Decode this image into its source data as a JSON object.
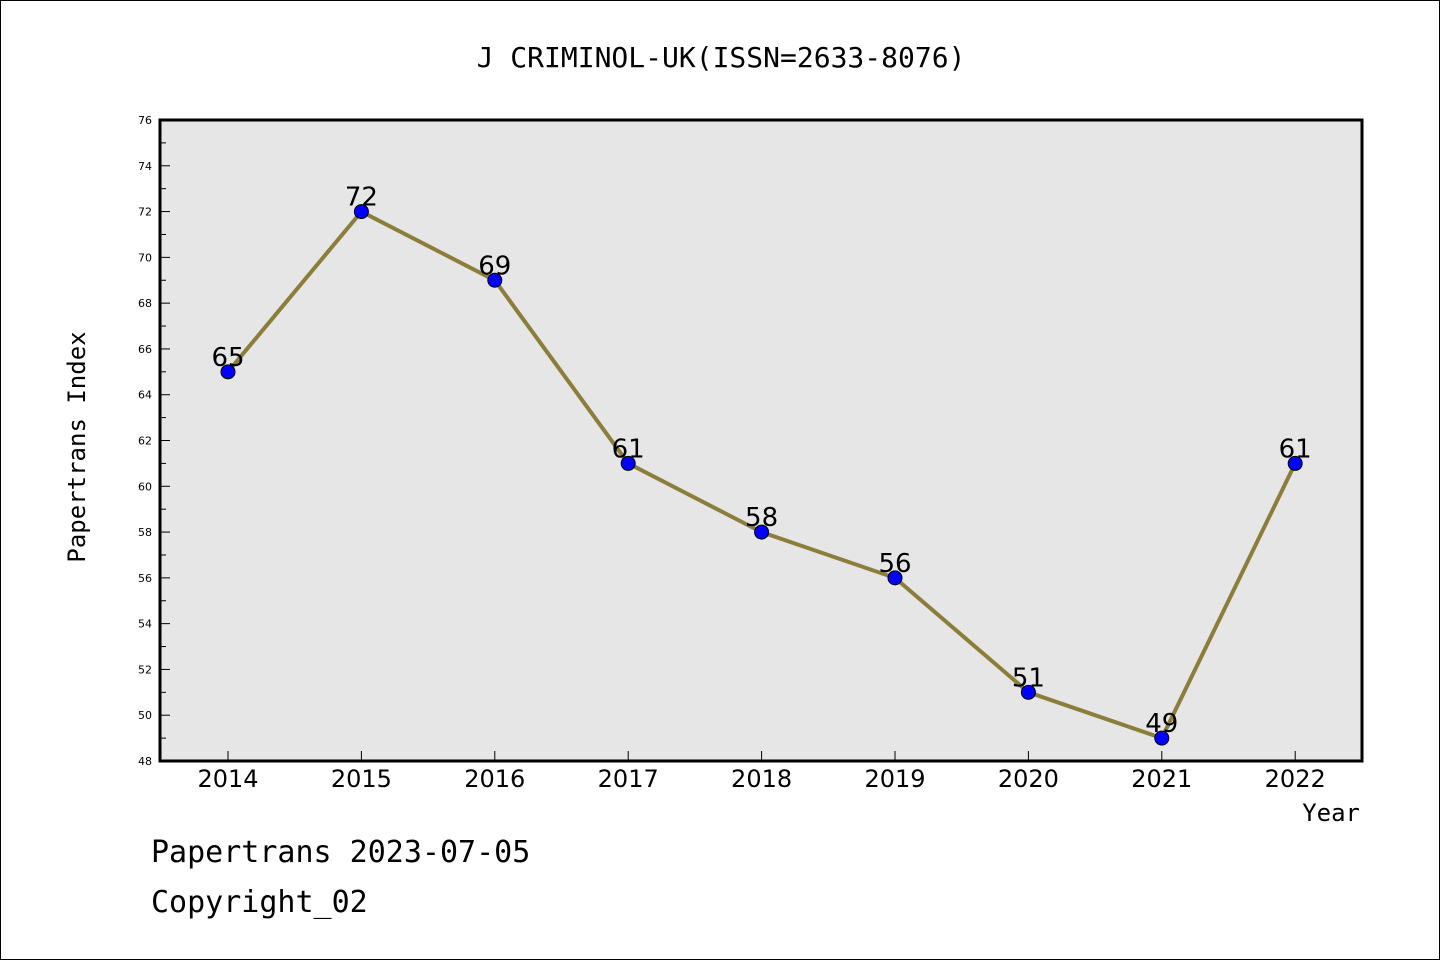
{
  "chart_data": {
    "type": "line",
    "title": "J CRIMINOL-UK(ISSN=2633-8076)",
    "xlabel": "Year",
    "ylabel": "Papertrans Index",
    "x": [
      "2014",
      "2015",
      "2016",
      "2017",
      "2018",
      "2019",
      "2020",
      "2021",
      "2022"
    ],
    "series": [
      {
        "values": [
          65,
          72,
          69,
          61,
          58,
          56,
          51,
          49,
          61
        ]
      }
    ],
    "data_labels": [
      "65",
      "72",
      "69",
      "61",
      "58",
      "56",
      "51",
      "49",
      "61"
    ],
    "ylim": [
      48,
      76
    ],
    "y_ticks": [
      "48",
      "50",
      "52",
      "54",
      "56",
      "58",
      "60",
      "62",
      "64",
      "66",
      "68",
      "70",
      "72",
      "74",
      "76"
    ],
    "grid": false,
    "legend": "none",
    "colors": {
      "line": "#8B7D3A",
      "marker_fill": "#0000FF",
      "marker_edge": "#000000",
      "plot_background": "#E6E6E6",
      "frame": "#000000"
    }
  },
  "footer": {
    "line1": "Papertrans 2023-07-05",
    "line2": "Copyright_02"
  }
}
